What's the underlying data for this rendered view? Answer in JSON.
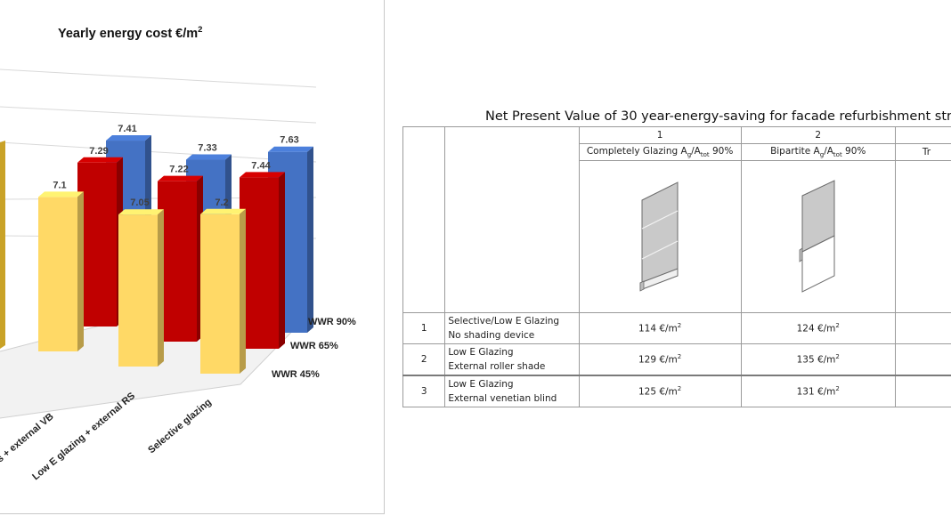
{
  "chart_data": {
    "type": "bar",
    "title": "Yearly energy cost €/m²",
    "categories": [
      "… + external VB",
      "Low E glazing + external RS",
      "Selective glazing"
    ],
    "series": [
      {
        "name": "WWR 45%",
        "values": [
          7.1,
          7.05,
          7.2
        ],
        "color": "#FFD966"
      },
      {
        "name": "WWR 65%",
        "values": [
          7.29,
          7.22,
          7.44
        ],
        "color": "#C00000"
      },
      {
        "name": "WWR 90%",
        "values": [
          7.41,
          7.33,
          7.63
        ],
        "color": "#4472C4"
      }
    ],
    "value_labels": [
      [
        "7.1",
        "7.29",
        "7.41"
      ],
      [
        "7.05",
        "7.22",
        "7.33"
      ],
      [
        "7.2",
        "7.44",
        "7.63"
      ]
    ],
    "category_labels": [
      "s + external VB",
      "Low E glazing + external RS",
      "Selective glazing"
    ],
    "legend_labels": [
      "WWR 90%",
      "WWR 65%",
      "WWR 45%"
    ],
    "partial_bar_color": "#C9A227",
    "grid": true
  },
  "table": {
    "title": "Net Present Value of 30 year-energy-saving for facade refurbishment stra",
    "columns": [
      {
        "number": "1",
        "header_main": "Completely Glazing A",
        "sub_g": "g",
        "slash": "/A",
        "sub_tot": "tot",
        "header_end": " 90%"
      },
      {
        "number": "2",
        "header_main": "Bipartite A",
        "sub_g": "g",
        "slash": "/A",
        "sub_tot": "tot",
        "header_end": " 90%"
      },
      {
        "number": "",
        "header_main": "Tr",
        "sub_g": "",
        "slash": "",
        "sub_tot": "",
        "header_end": ""
      }
    ],
    "rows": [
      {
        "idx": "1",
        "line1": "Selective/Low E Glazing",
        "line2": "No shading device",
        "v1": "114 €/m",
        "v2": "124 €/m"
      },
      {
        "idx": "2",
        "line1": "Low E Glazing",
        "line2": "External roller shade",
        "v1": "129 €/m",
        "v2": "135 €/m"
      },
      {
        "idx": "3",
        "line1": "Low E Glazing",
        "line2": "External venetian blind",
        "v1": "125 €/m",
        "v2": "131 €/m"
      }
    ],
    "unit_sup": "2"
  }
}
